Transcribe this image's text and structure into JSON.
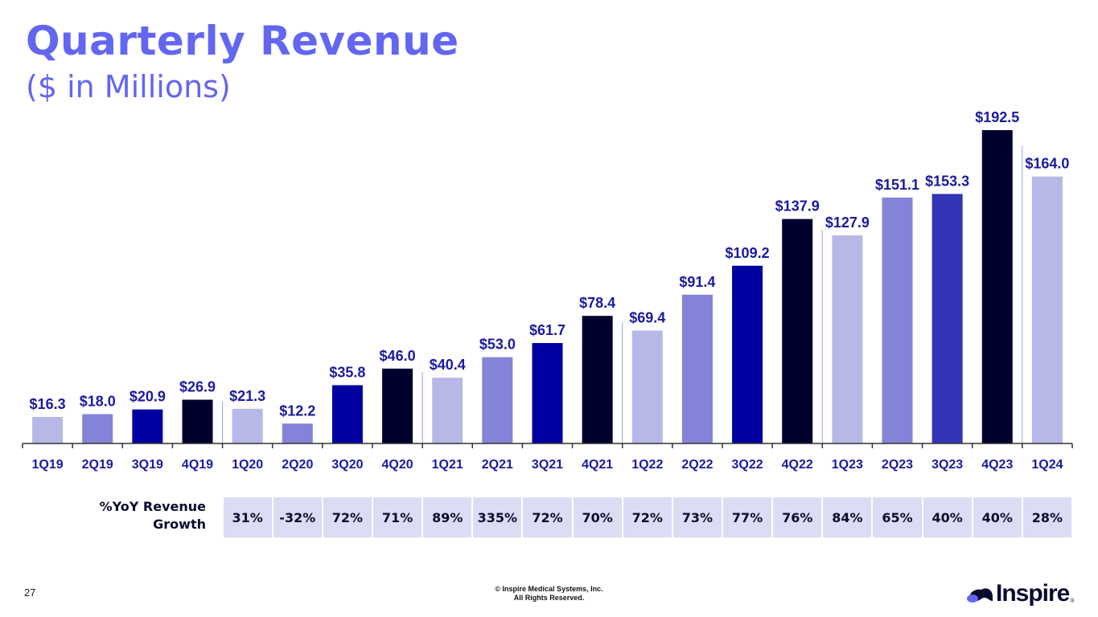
{
  "header": {
    "title": "Quarterly Revenue",
    "subtitle": "($ in Millions)"
  },
  "chart_data": {
    "type": "bar",
    "title": "Quarterly Revenue",
    "subtitle": "($ in Millions)",
    "xlabel": "",
    "ylabel": "",
    "ylim": [
      0,
      200
    ],
    "grid": false,
    "legend": "none",
    "categories": [
      "1Q19",
      "2Q19",
      "3Q19",
      "4Q19",
      "1Q20",
      "2Q20",
      "3Q20",
      "4Q20",
      "1Q21",
      "2Q21",
      "3Q21",
      "4Q21",
      "1Q22",
      "2Q22",
      "3Q22",
      "4Q22",
      "1Q23",
      "2Q23",
      "3Q23",
      "4Q23",
      "1Q24"
    ],
    "values": [
      16.3,
      18.0,
      20.9,
      26.9,
      21.3,
      12.2,
      35.8,
      46.0,
      40.4,
      53.0,
      61.7,
      78.4,
      69.4,
      91.4,
      109.2,
      137.9,
      127.9,
      151.1,
      153.3,
      192.5,
      164.0
    ],
    "data_labels": [
      "$16.3",
      "$18.0",
      "$20.9",
      "$26.9",
      "$21.3",
      "$12.2",
      "$35.8",
      "$46.0",
      "$40.4",
      "$53.0",
      "$61.7",
      "$78.4",
      "$69.4",
      "$91.4",
      "$109.2",
      "$137.9",
      "$127.9",
      "$151.1",
      "$153.3",
      "$192.5",
      "$164.0"
    ],
    "quarter_colors": {
      "1Q": "#b8b8e8",
      "2Q": "#8383d8",
      "3Q": "#0000a0",
      "4Q": "#00002e",
      "3Q23": "#3333b5"
    },
    "year_separators_before": [
      "1Q20",
      "1Q21",
      "1Q22",
      "1Q23",
      "1Q24"
    ],
    "label_color": "#1a1aa0"
  },
  "growth_table": {
    "label_line1": "%YoY Revenue",
    "label_line2": "Growth",
    "values": [
      "31%",
      "-32%",
      "72%",
      "71%",
      "89%",
      "335%",
      "72%",
      "70%",
      "72%",
      "73%",
      "77%",
      "76%",
      "84%",
      "65%",
      "40%",
      "40%",
      "28%"
    ],
    "starts_at": "1Q20"
  },
  "footer": {
    "page_number": "27",
    "copyright_line1": "© Inspire Medical Systems, Inc.",
    "copyright_line2": "All Rights Reserved.",
    "logo_text": "Inspire",
    "logo_reg": "®"
  }
}
